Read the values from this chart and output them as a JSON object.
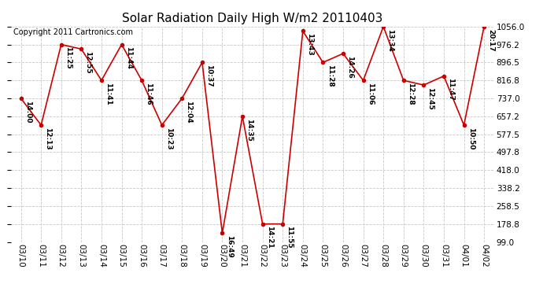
{
  "title": "Solar Radiation Daily High W/m2 20110403",
  "copyright": "Copyright 2011 Cartronics.com",
  "dates": [
    "03/10",
    "03/11",
    "03/12",
    "03/13",
    "03/14",
    "03/15",
    "03/16",
    "03/17",
    "03/18",
    "03/19",
    "03/20",
    "03/21",
    "03/22",
    "03/23",
    "03/24",
    "03/25",
    "03/26",
    "03/27",
    "03/28",
    "03/29",
    "03/30",
    "03/31",
    "04/01",
    "04/02"
  ],
  "values": [
    737.0,
    618.0,
    976.2,
    956.0,
    816.8,
    976.2,
    816.8,
    618.0,
    737.0,
    896.5,
    138.0,
    657.2,
    178.8,
    178.8,
    1036.0,
    896.5,
    936.0,
    816.8,
    1056.0,
    816.8,
    796.0,
    836.0,
    618.0,
    1056.0
  ],
  "labels": [
    "14:00",
    "12:13",
    "11:25",
    "12:55",
    "11:41",
    "11:44",
    "11:46",
    "10:23",
    "12:04",
    "10:37",
    "16:49",
    "14:35",
    "14:21",
    "11:55",
    "13:43",
    "11:28",
    "14:26",
    "11:06",
    "13:34",
    "12:28",
    "12:45",
    "11:47",
    "10:50",
    "20:17"
  ],
  "ymin": 99.0,
  "ymax": 1056.0,
  "yticks": [
    99.0,
    178.8,
    258.5,
    338.2,
    418.0,
    497.8,
    577.5,
    657.2,
    737.0,
    816.8,
    896.5,
    976.2,
    1056.0
  ],
  "line_color": "#cc0000",
  "marker_color": "#cc0000",
  "bg_color": "#ffffff",
  "grid_color": "#c8c8c8",
  "title_fontsize": 11,
  "label_fontsize": 6.5,
  "tick_fontsize": 7.5,
  "copyright_fontsize": 7
}
